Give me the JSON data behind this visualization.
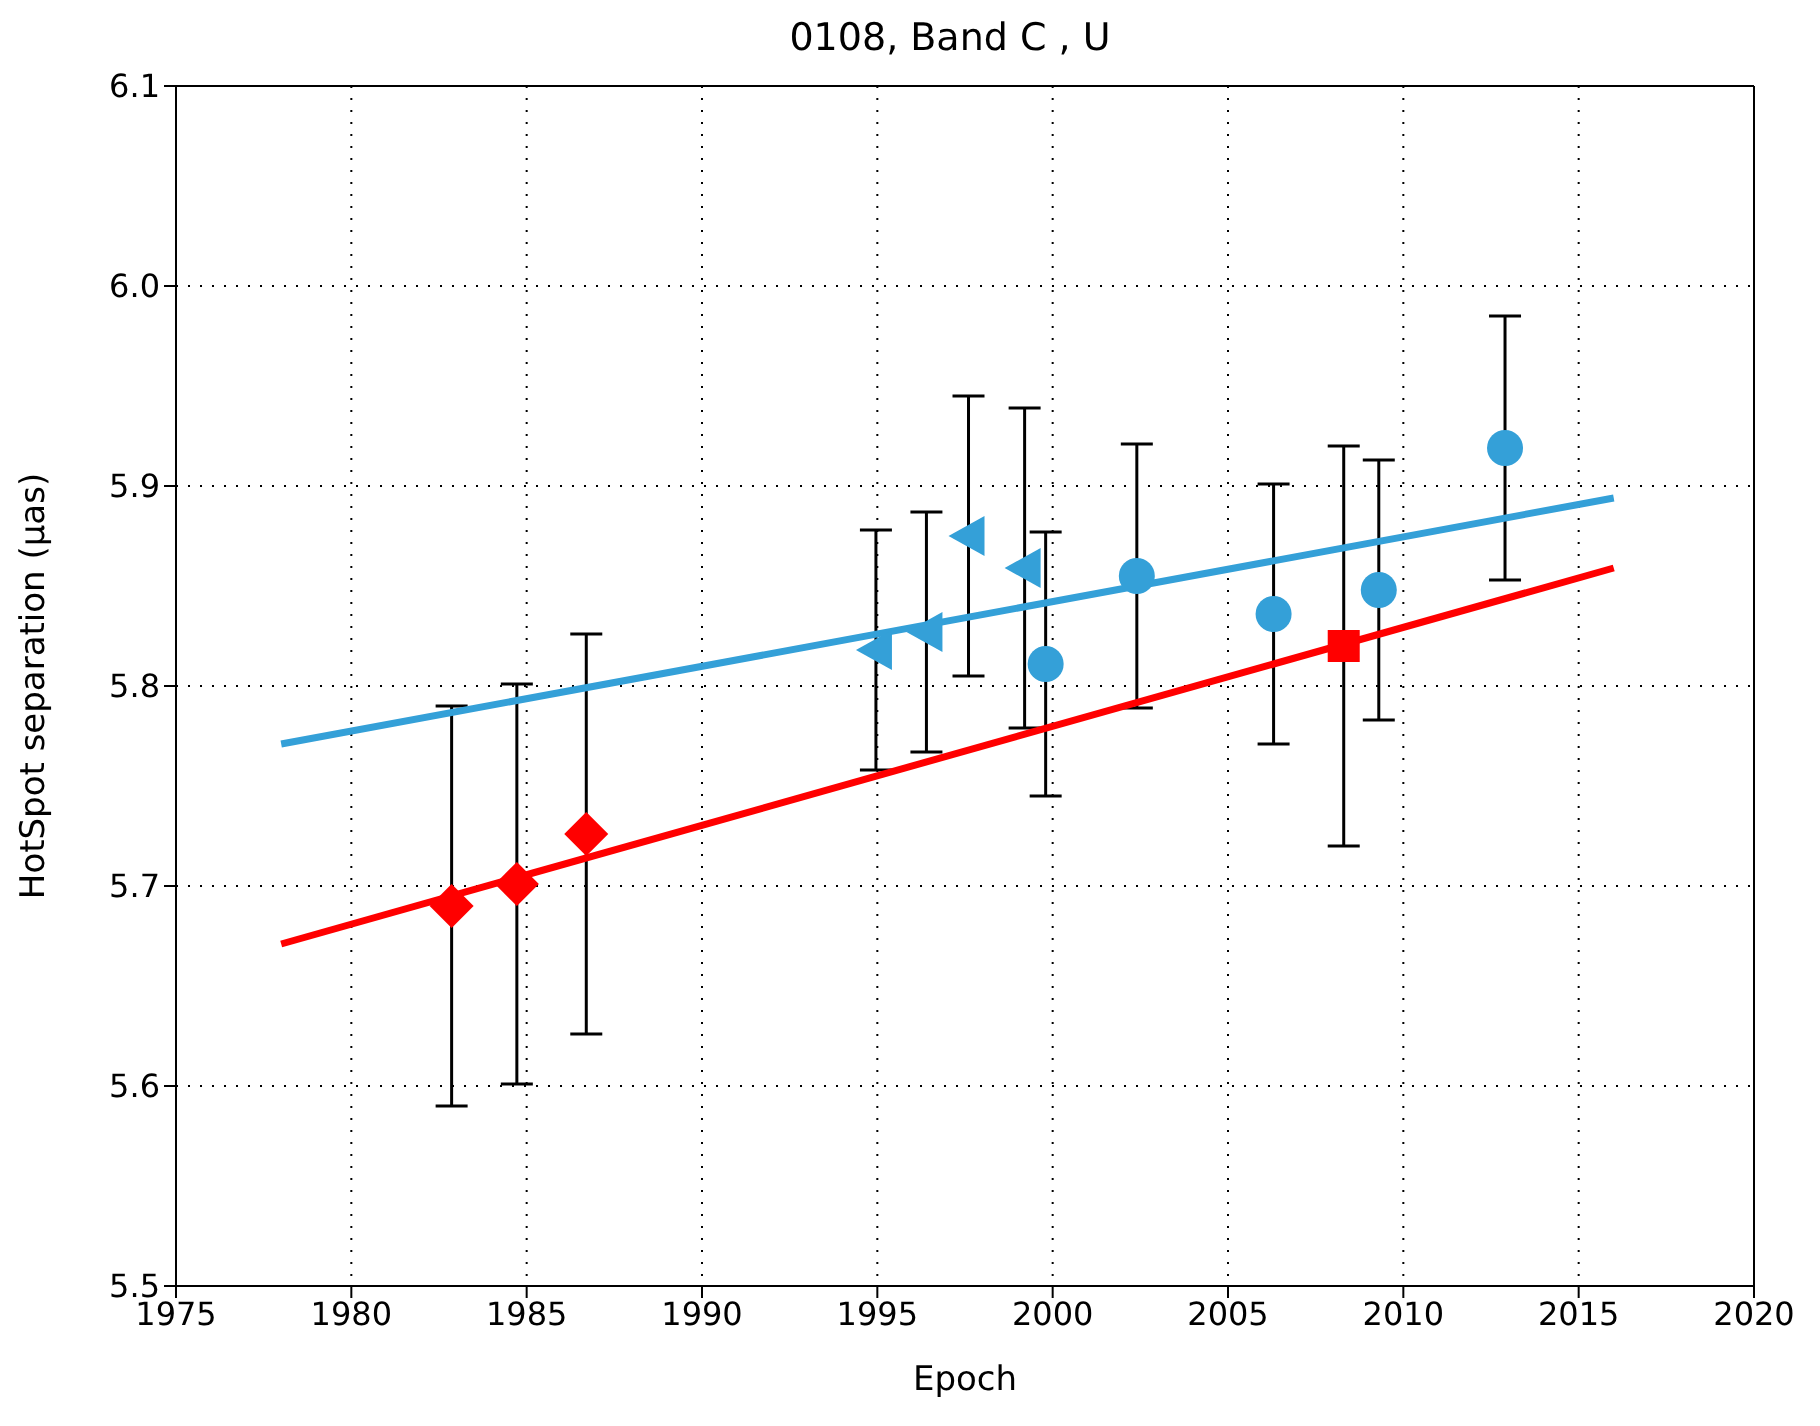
{
  "chart_data": {
    "type": "scatter",
    "title": "0108, Band C , U",
    "xlabel": "Epoch",
    "ylabel": "HotSpot separation (μas)",
    "xlim": [
      1975,
      2020
    ],
    "xticks": [
      1975,
      1980,
      1985,
      1990,
      1995,
      2000,
      2005,
      2010,
      2015,
      2020
    ],
    "ylim": [
      5.5,
      6.1
    ],
    "yticks": [
      5.5,
      5.6,
      5.7,
      5.8,
      5.9,
      {
        "value": 6.0,
        "label": "6.0"
      },
      6.1
    ],
    "grid": true,
    "series": [
      {
        "marker": "diamond",
        "color": "#ff0000",
        "x": [
          1982.86,
          1984.72,
          1986.7
        ],
        "values": [
          5.69,
          5.701,
          5.726
        ],
        "errors": [
          0.1,
          0.1,
          0.1
        ]
      },
      {
        "marker": "square",
        "color": "#ff0000",
        "x": [
          2008.3
        ],
        "values": [
          5.82
        ],
        "errors": [
          0.1
        ]
      },
      {
        "marker": "circle",
        "color": "#34a0d8",
        "x": [
          1999.8,
          2002.4,
          2006.3,
          2009.3,
          2012.9
        ],
        "values": [
          5.811,
          5.855,
          5.836,
          5.848,
          5.919
        ],
        "errors": [
          0.066,
          0.066,
          0.065,
          0.065,
          0.066
        ]
      },
      {
        "marker": "triangle",
        "color": "#34a0d8",
        "x": [
          1994.96,
          1996.4,
          1997.6,
          1999.2
        ],
        "values": [
          5.818,
          5.827,
          5.875,
          5.859
        ],
        "errors": [
          0.06,
          0.06,
          0.07,
          0.08
        ]
      },
      {
        "type": "line",
        "marker": "none",
        "color": "#ff0000",
        "x": [
          1978,
          2016
        ],
        "values": [
          5.671,
          5.859
        ]
      },
      {
        "type": "line",
        "marker": "none",
        "color": "#34a0d8",
        "x": [
          1978,
          2016
        ],
        "values": [
          5.771,
          5.894
        ]
      }
    ]
  }
}
